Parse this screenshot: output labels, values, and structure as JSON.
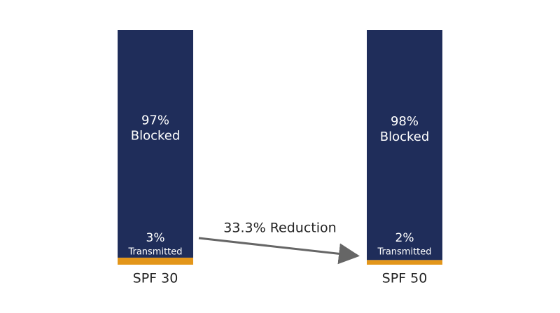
{
  "chart_data": {
    "type": "stacked_bar",
    "categories": [
      "SPF 30",
      "SPF 50"
    ],
    "series": [
      {
        "name": "Transmitted",
        "color": "#e3961a",
        "values": [
          3,
          2
        ],
        "value_labels": [
          "3%",
          "2%"
        ]
      },
      {
        "name": "Blocked",
        "color": "#1f2d5a",
        "values": [
          97,
          98
        ],
        "value_labels": [
          "97%",
          "98%"
        ]
      }
    ],
    "annotation": "33.3% Reduction"
  }
}
